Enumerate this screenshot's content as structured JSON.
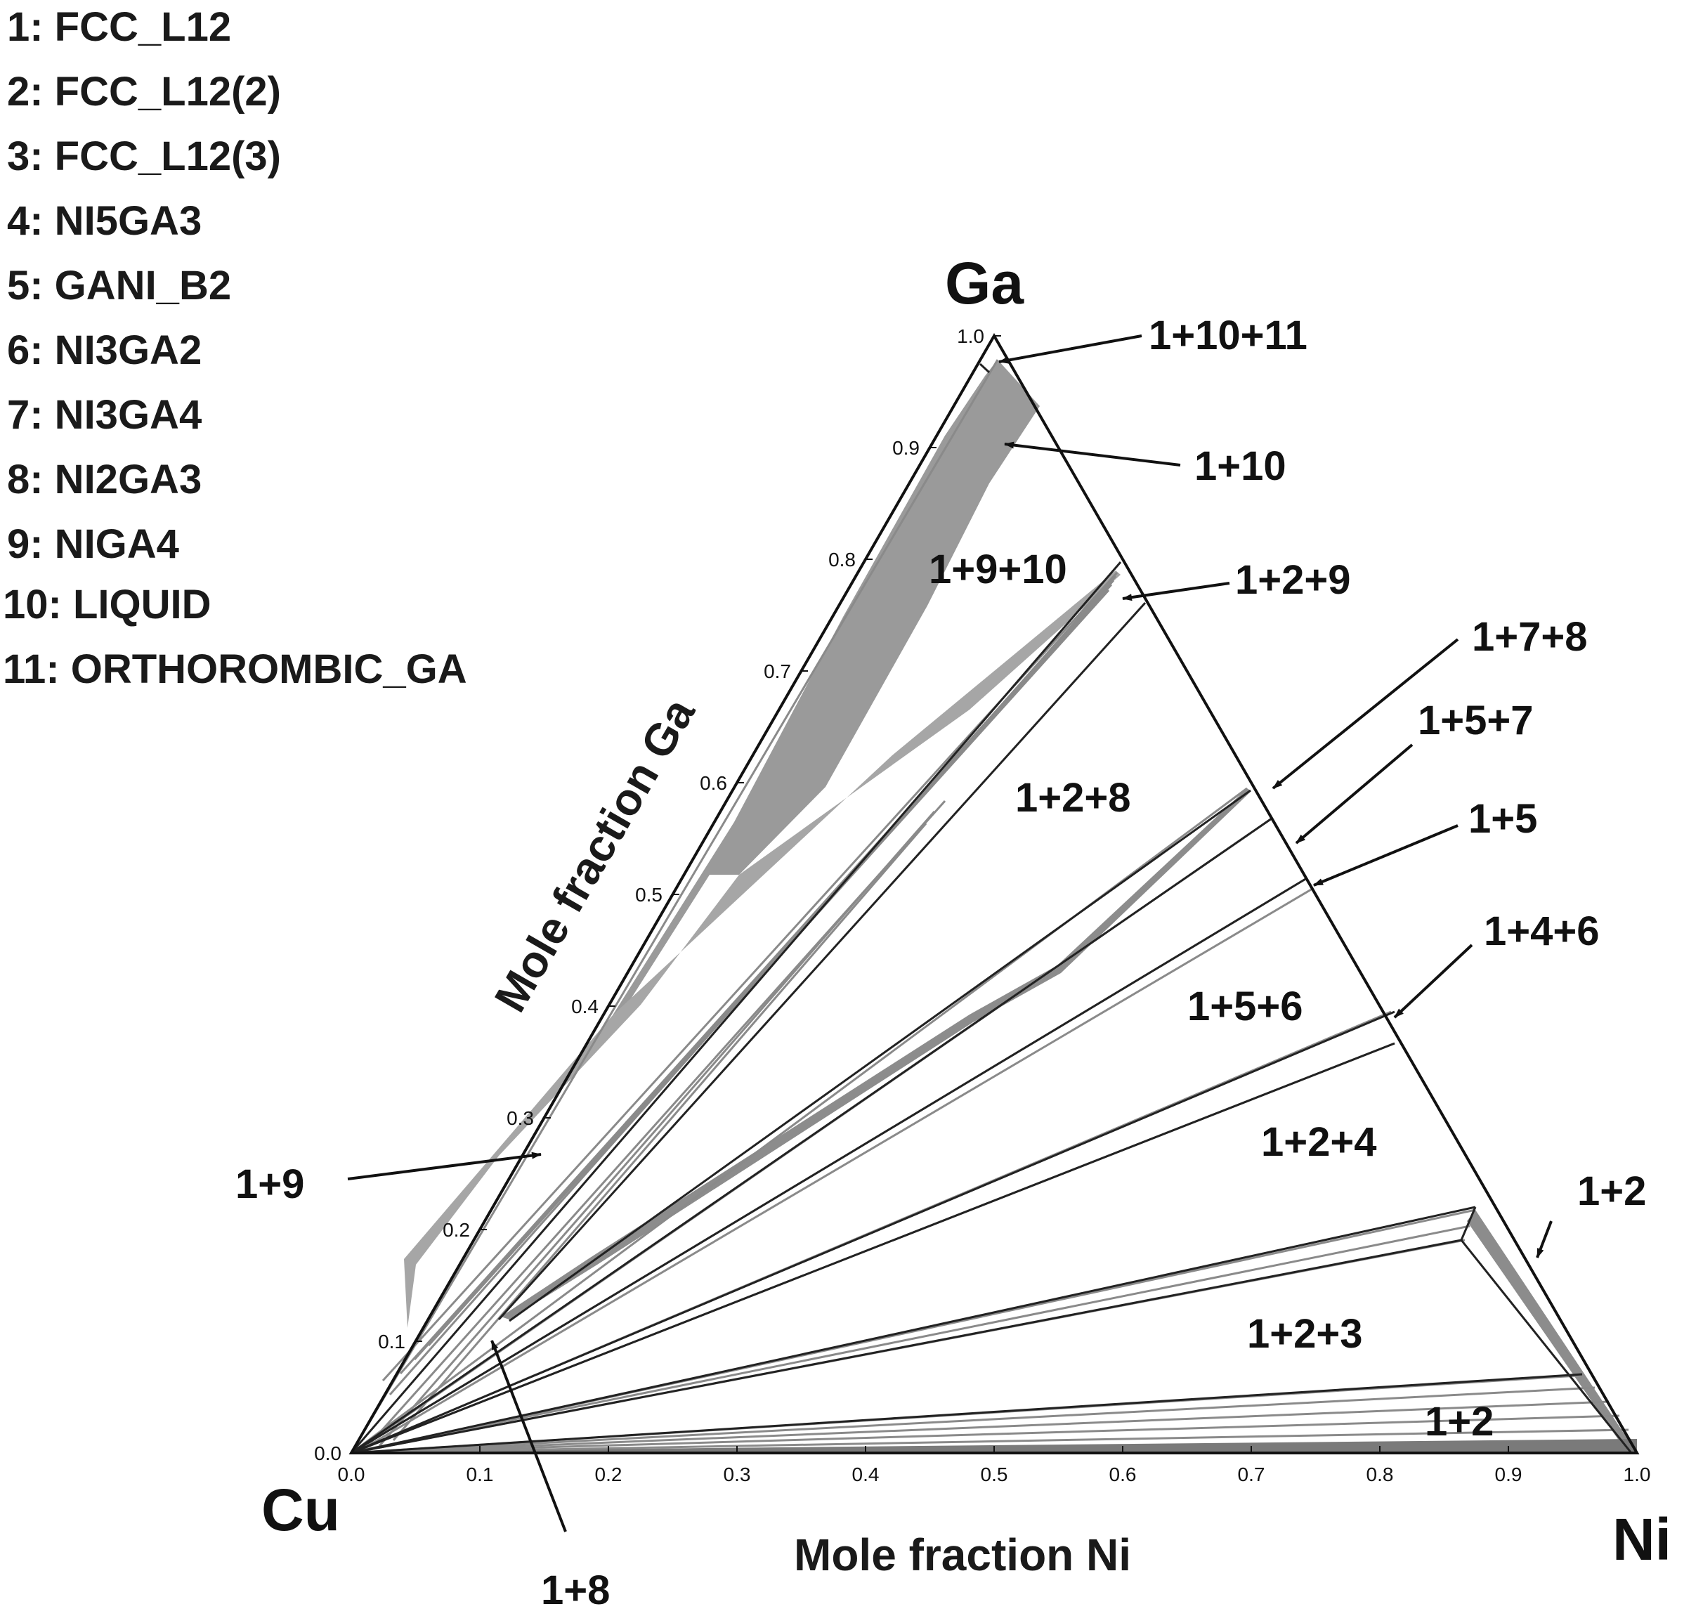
{
  "legend": [
    "1: FCC_L12",
    "2: FCC_L12(2)",
    "3: FCC_L12(3)",
    "4: NI5GA3",
    "5: GANI_B2",
    "6: NI3GA2",
    "7: NI3GA4",
    "8: NI2GA3",
    "9: NIGA4",
    "10: LIQUID",
    "11: ORTHOROMBIC_GA"
  ],
  "corners": {
    "top": "Ga",
    "left": "Cu",
    "right": "Ni"
  },
  "axes": {
    "left_title": "Mole fraction Ga",
    "bottom_title": "Mole fraction Ni",
    "left_ticks": [
      "0.0",
      "0.1",
      "0.2",
      "0.3",
      "0.4",
      "0.5",
      "0.6",
      "0.7",
      "0.8",
      "0.9",
      "1.0"
    ],
    "bottom_ticks": [
      "0.0",
      "0.1",
      "0.2",
      "0.3",
      "0.4",
      "0.5",
      "0.6",
      "0.7",
      "0.8",
      "0.9",
      "1.0"
    ]
  },
  "regions": [
    "1+9+10",
    "1+2+8",
    "1+5+6",
    "1+2+4",
    "1+2+3",
    "1+2"
  ],
  "callouts": [
    "1+10+11",
    "1+10",
    "1+2+9",
    "1+7+8",
    "1+5+7",
    "1+5",
    "1+4+6",
    "1+2",
    "1+9",
    "1+8"
  ],
  "colors": {
    "tie_line": "#8a8a8a",
    "shade": "#9a9a9a",
    "frame": "#111111"
  }
}
